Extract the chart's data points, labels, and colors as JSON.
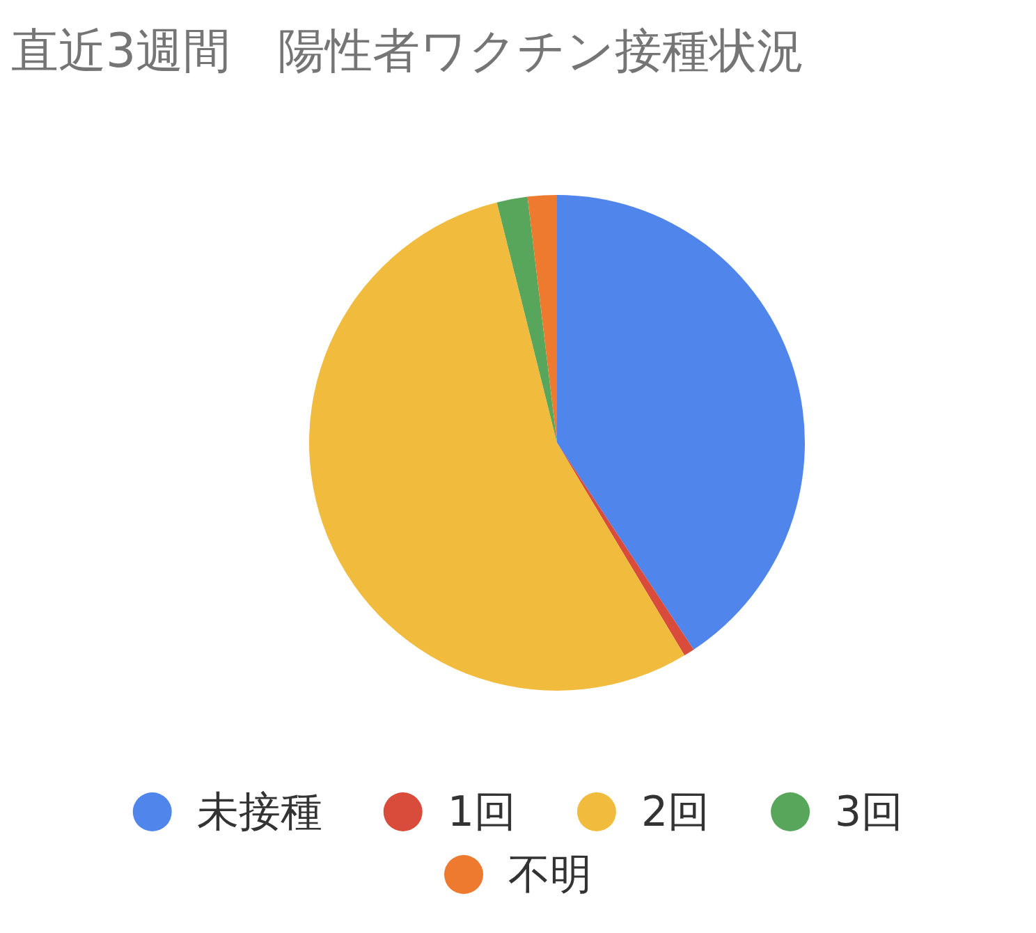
{
  "chart_data": {
    "type": "pie",
    "title": "直近3週間　陽性者ワクチン接種状況",
    "categories": [
      "未接種",
      "1回",
      "2回",
      "3回",
      "不明"
    ],
    "values": [
      40.7,
      0.7,
      54.7,
      2.0,
      1.9
    ],
    "colors": [
      "#5085ec",
      "#d94b3b",
      "#f1bc3e",
      "#58a65c",
      "#ee7a30"
    ],
    "legend": "bottom"
  }
}
